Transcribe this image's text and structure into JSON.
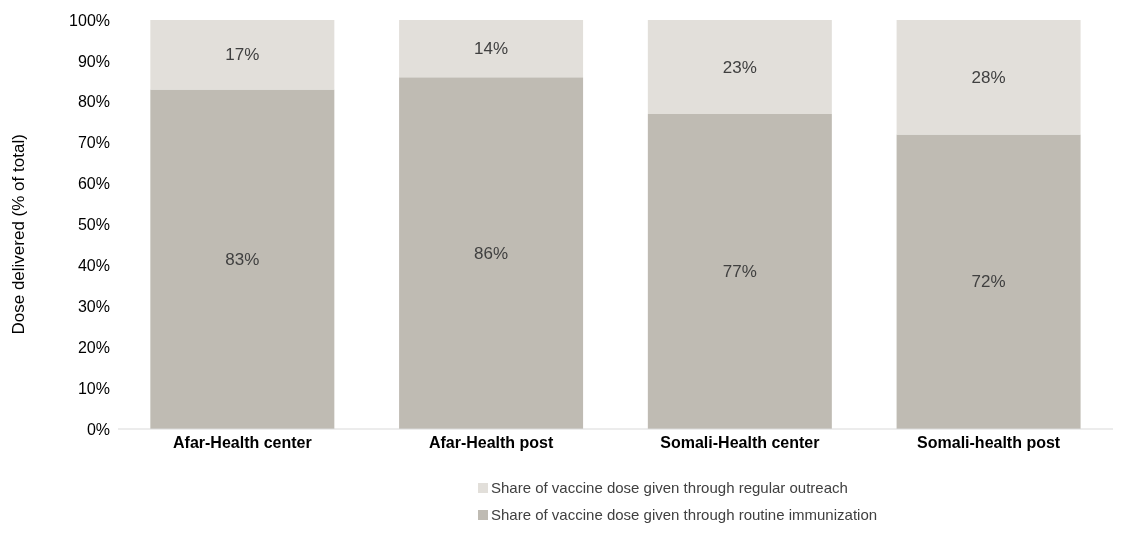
{
  "chart_data": {
    "type": "bar",
    "stacked": true,
    "categories": [
      "Afar-Health center",
      "Afar-Health post",
      "Somali-Health center",
      "Somali-health post"
    ],
    "ylabel": "Dose delivered (% of total)",
    "ylim": [
      0,
      100
    ],
    "yticks": [
      {
        "value": 0,
        "label": "0%"
      },
      {
        "value": 10,
        "label": "10%"
      },
      {
        "value": 20,
        "label": "20%"
      },
      {
        "value": 30,
        "label": "30%"
      },
      {
        "value": 40,
        "label": "40%"
      },
      {
        "value": 50,
        "label": "50%"
      },
      {
        "value": 60,
        "label": "60%"
      },
      {
        "value": 70,
        "label": "70%"
      },
      {
        "value": 80,
        "label": "80%"
      },
      {
        "value": 90,
        "label": "90%"
      },
      {
        "value": 100,
        "label": "100%"
      }
    ],
    "series": [
      {
        "name": "Share of vaccine dose given through routine immunization",
        "color": "#bfbbb3",
        "values": [
          83,
          86,
          77,
          72
        ],
        "value_labels": [
          "83%",
          "86%",
          "77%",
          "72%"
        ]
      },
      {
        "name": "Share of vaccine dose given through regular outreach",
        "color": "#e2dfda",
        "values": [
          17,
          14,
          23,
          28
        ],
        "value_labels": [
          "17%",
          "14%",
          "23%",
          "28%"
        ]
      }
    ],
    "grid": false,
    "legend": "bottom"
  }
}
